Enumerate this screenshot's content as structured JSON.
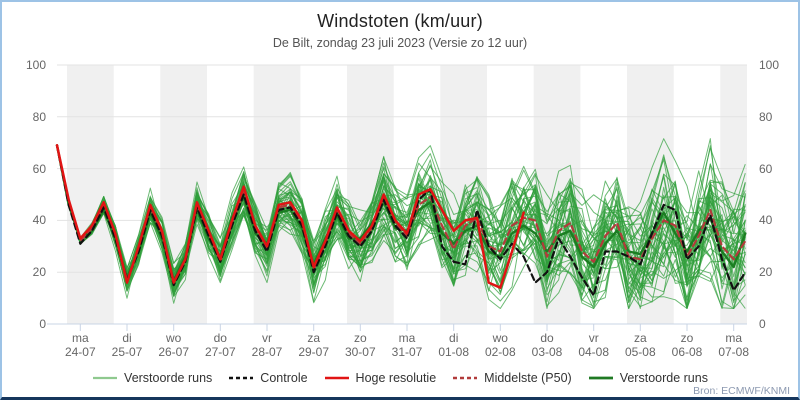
{
  "chart_data": {
    "type": "line",
    "title": "Windstoten (km/uur)",
    "subtitle": "De Bilt, zondag 23 juli 2023 (Versie zo 12 uur)",
    "ylim": [
      0,
      100
    ],
    "yticks": [
      0,
      20,
      40,
      60,
      80,
      100
    ],
    "grid": true,
    "legend_position": "bottom",
    "time_step_hours": 6,
    "x_days": [
      {
        "dow": "ma",
        "date": "24-07"
      },
      {
        "dow": "di",
        "date": "25-07"
      },
      {
        "dow": "wo",
        "date": "26-07"
      },
      {
        "dow": "do",
        "date": "27-07"
      },
      {
        "dow": "vr",
        "date": "28-07"
      },
      {
        "dow": "za",
        "date": "29-07"
      },
      {
        "dow": "zo",
        "date": "30-07"
      },
      {
        "dow": "ma",
        "date": "31-07"
      },
      {
        "dow": "di",
        "date": "01-08"
      },
      {
        "dow": "wo",
        "date": "02-08"
      },
      {
        "dow": "do",
        "date": "03-08"
      },
      {
        "dow": "vr",
        "date": "04-08"
      },
      {
        "dow": "za",
        "date": "05-08"
      },
      {
        "dow": "zo",
        "date": "06-08"
      },
      {
        "dow": "ma",
        "date": "07-08"
      }
    ],
    "series": [
      {
        "name": "Verstoorde runs (mediaan)",
        "color": "#1b7e22",
        "dash": null,
        "width": 2.4,
        "values": [
          69,
          46,
          33,
          36,
          44,
          33,
          18,
          28,
          43,
          33,
          17,
          26,
          44,
          33,
          26,
          41,
          49,
          35,
          31,
          43,
          44,
          37,
          23,
          33,
          42,
          33,
          33,
          39,
          47,
          37,
          36,
          44,
          47,
          35,
          31,
          36,
          38,
          28,
          26,
          35,
          38,
          35,
          28,
          34,
          36,
          26,
          22,
          31,
          36,
          28,
          27,
          35,
          43,
          35,
          28,
          36,
          41,
          28,
          22,
          35
        ]
      },
      {
        "name": "Middelste (P50)",
        "color": "#b23b3b",
        "dash": "6,4",
        "width": 2.2,
        "values": [
          69,
          47,
          32,
          37,
          46,
          34,
          17,
          29,
          45,
          35,
          16,
          24,
          46,
          35,
          24,
          39,
          51,
          37,
          29,
          45,
          46,
          39,
          21,
          31,
          44,
          35,
          31,
          37,
          49,
          39,
          34,
          46,
          49,
          38,
          29,
          38,
          41,
          30,
          28,
          38,
          41,
          40,
          26,
          36,
          39,
          28,
          24,
          34,
          39,
          26,
          25,
          33,
          40,
          38,
          26,
          34,
          44,
          30,
          25,
          32
        ]
      },
      {
        "name": "Controle",
        "color": "#111111",
        "dash": "6,4",
        "width": 2.2,
        "values": [
          69,
          46,
          31,
          36,
          45,
          33,
          17,
          28,
          44,
          34,
          15,
          24,
          45,
          34,
          24,
          38,
          50,
          36,
          28,
          44,
          45,
          38,
          20,
          30,
          43,
          34,
          30,
          36,
          48,
          38,
          33,
          48,
          52,
          30,
          24,
          23,
          44,
          30,
          25,
          31,
          26,
          16,
          20,
          33,
          26,
          18,
          11,
          28,
          28,
          26,
          23,
          35,
          46,
          44,
          25,
          30,
          42,
          25,
          13,
          20
        ]
      },
      {
        "name": "Hoge resolutie",
        "color": "#e11414",
        "dash": null,
        "width": 2.5,
        "values": [
          69,
          48,
          33,
          38,
          47,
          35,
          16,
          30,
          46,
          36,
          16,
          25,
          47,
          36,
          25,
          40,
          53,
          38,
          30,
          46,
          47,
          40,
          22,
          32,
          45,
          36,
          32,
          38,
          50,
          40,
          35,
          50,
          52,
          44,
          36,
          40,
          41,
          16,
          14,
          28,
          43
        ]
      }
    ],
    "ensemble": {
      "name": "Verstoorde runs",
      "color": "#2f9e3a",
      "opacity": 0.7,
      "width": 1,
      "count": 48,
      "seed": 11,
      "start_value": 69,
      "spread_base": 2,
      "spread_growth": 19
    }
  },
  "legend": {
    "items": [
      {
        "label": "Verstoorde runs",
        "color": "#8fc98f",
        "dash": null,
        "width": 2.2
      },
      {
        "label": "Controle",
        "color": "#111111",
        "dash": "4,3",
        "width": 2.4
      },
      {
        "label": "Hoge resolutie",
        "color": "#e11414",
        "dash": null,
        "width": 2.6
      },
      {
        "label": "Middelste (P50)",
        "color": "#b23b3b",
        "dash": "4,3",
        "width": 2.4
      },
      {
        "label": "Verstoorde runs",
        "color": "#1f7a24",
        "dash": null,
        "width": 2.8
      }
    ]
  },
  "source_note": "Bron: ECMWF/KNMI",
  "style": {
    "band_fill": "#f0f0f0",
    "gridline_color": "#e3e3e3",
    "axis_color": "#c8d4e4",
    "frame_border": "#9dc3e6",
    "frame_bottom": "#16365c"
  }
}
